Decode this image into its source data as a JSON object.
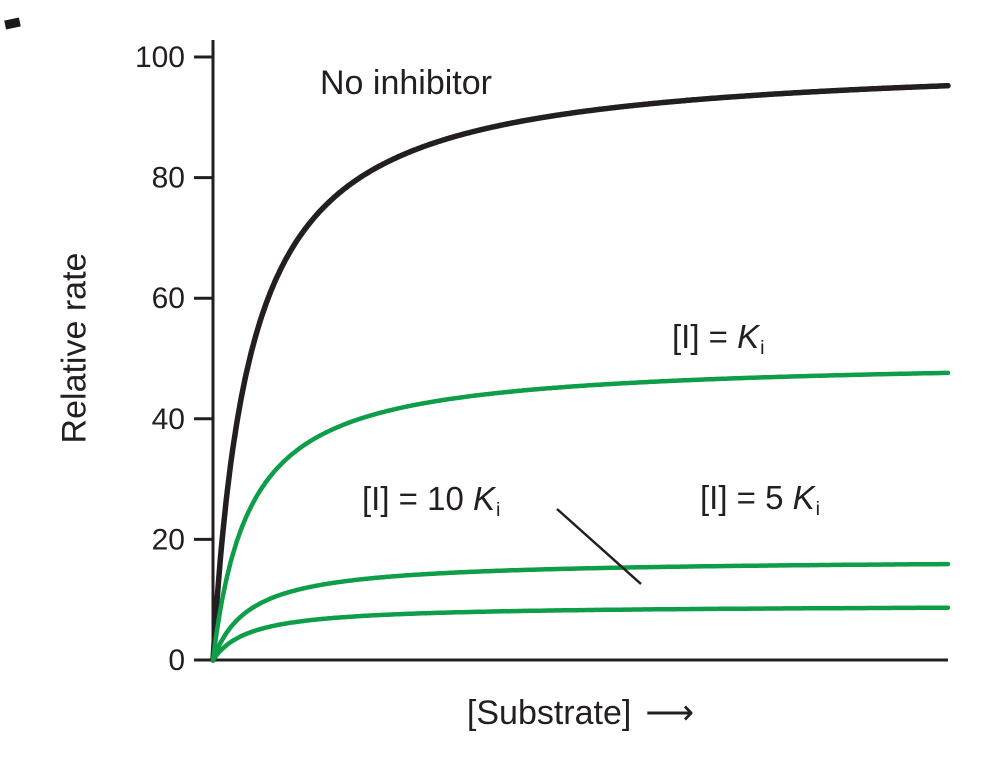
{
  "chart_data": {
    "type": "line",
    "xlabel": "[Substrate]",
    "x_arrow": "⟶",
    "ylabel": "Relative rate",
    "ylim": [
      0,
      100
    ],
    "yticks": [
      0,
      20,
      40,
      60,
      80,
      100
    ],
    "x_max": 10,
    "grid": false,
    "axis_color": "#231f20",
    "accent_green": "#0e9d48",
    "series": [
      {
        "name": "No inhibitor",
        "color": "#231f20",
        "vmax": 100,
        "km": 0.5,
        "plateau_shown": 95
      },
      {
        "name": "[I] = K_i",
        "color": "#0e9d48",
        "vmax": 50,
        "km": 0.5,
        "plateau_shown": 48
      },
      {
        "name": "[I] = 5 K_i",
        "color": "#0e9d48",
        "vmax": 16.7,
        "km": 0.5,
        "plateau_shown": 16
      },
      {
        "name": "[I] = 10 K_i",
        "color": "#0e9d48",
        "vmax": 9.1,
        "km": 0.5,
        "plateau_shown": 9
      }
    ],
    "annotations": {
      "no_inhibitor": "No inhibitor",
      "ki": {
        "pre": "[I] = ",
        "sym": "K",
        "sub": "i"
      },
      "ki10": {
        "pre": "[I] = 10 ",
        "sym": "K",
        "sub": "i"
      },
      "ki5": {
        "pre": "[I] = 5 ",
        "sym": "K",
        "sub": "i"
      }
    },
    "legend_position": "labels-on-plot"
  }
}
